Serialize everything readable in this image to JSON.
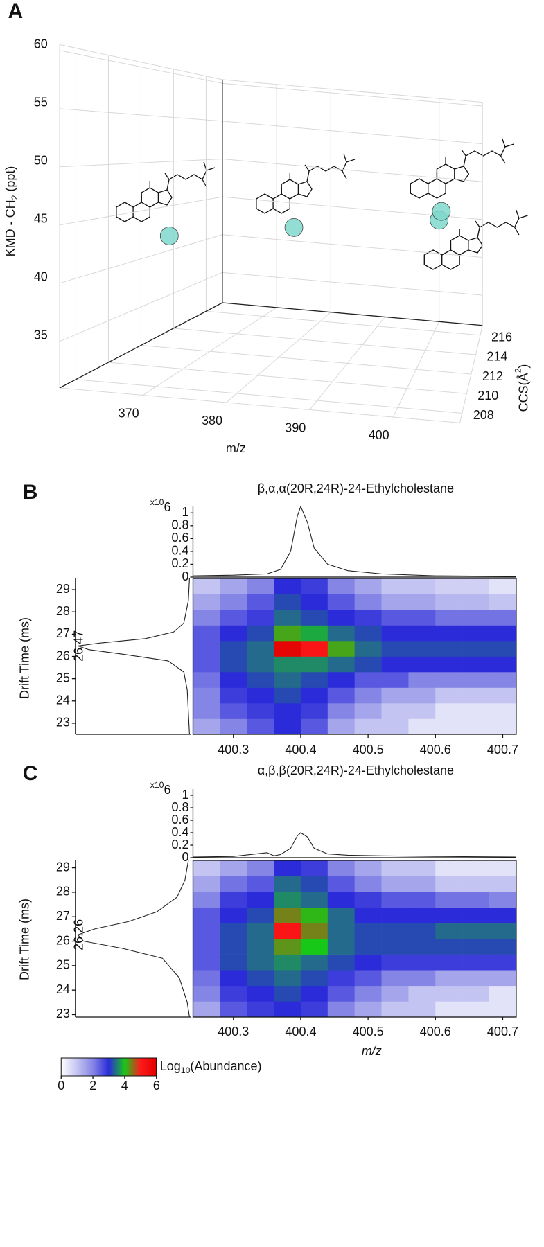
{
  "chart_data": [
    {
      "type": "scatter3d",
      "panel_label": "A",
      "x_label": "m/z",
      "y_label": [
        "CCS(Å",
        "2",
        ")"
      ],
      "z_label": [
        "KMD - CH",
        "2",
        " (ppt)"
      ],
      "xlim": [
        360,
        408
      ],
      "xticks": [
        370,
        380,
        390,
        400
      ],
      "ylim": [
        207,
        217
      ],
      "yticks": [
        208,
        210,
        212,
        214,
        216
      ],
      "zlim": [
        31,
        60.5
      ],
      "zticks": [
        35,
        40,
        45,
        50,
        55,
        60
      ],
      "x": [
        372.4,
        386.4,
        400.4,
        400.4
      ],
      "y": [
        207.5,
        208.65,
        216.5,
        217
      ],
      "z": [
        44.7,
        46,
        44.7,
        45.6
      ],
      "color": "#7fd8cc"
    },
    {
      "type": "heatmap",
      "panel_label": "B",
      "title": "β,α,α(20R,24R)-24-Ethylcholestane",
      "y_label": "Drift Time (ms)",
      "xlim": [
        400.24,
        400.72
      ],
      "xticks": [
        400.3,
        400.4,
        400.5,
        400.6,
        400.7
      ],
      "ylim": [
        22.5,
        29.5
      ],
      "yticks": [
        23,
        24,
        25,
        26,
        27,
        28,
        29
      ],
      "x_edges": [
        400.24,
        400.28,
        400.32,
        400.36,
        400.4,
        400.44,
        400.48,
        400.52,
        400.56,
        400.6,
        400.64,
        400.68,
        400.72
      ],
      "y_edges": [
        22.5,
        23.2,
        23.9,
        24.6,
        25.3,
        26,
        26.7,
        27.4,
        28.1,
        28.8,
        29.5
      ],
      "z": [
        [
          1.5,
          2,
          2.5,
          3,
          2.5,
          1.5,
          1,
          1,
          0.5,
          0.5,
          0.5,
          0.5
        ],
        [
          2,
          2.5,
          2.8,
          3,
          2.8,
          2,
          1.5,
          1,
          1,
          0.5,
          0.5,
          0.5
        ],
        [
          2,
          2.8,
          3,
          3.2,
          3,
          2.5,
          2,
          1.5,
          1.5,
          1,
          1,
          1
        ],
        [
          2.2,
          3,
          3.2,
          3.4,
          3.2,
          3,
          2.5,
          2.5,
          2,
          2,
          2,
          2
        ],
        [
          2.5,
          3.2,
          3.4,
          3.6,
          3.6,
          3.4,
          3.2,
          3,
          3,
          3,
          3,
          3
        ],
        [
          2.5,
          3.2,
          3.4,
          5.8,
          5.2,
          4.2,
          3.4,
          3.2,
          3.2,
          3.2,
          3.2,
          3.2
        ],
        [
          2.5,
          3,
          3.2,
          4.2,
          3.8,
          3.4,
          3.2,
          3,
          3,
          3,
          3,
          3
        ],
        [
          2,
          2.5,
          2.8,
          3.4,
          3.2,
          3,
          2.8,
          2.5,
          2.5,
          2.2,
          2.2,
          2.2
        ],
        [
          1.5,
          2,
          2.5,
          3.2,
          3,
          2.5,
          2,
          1.5,
          1.5,
          1.2,
          1.2,
          1
        ],
        [
          1,
          1.5,
          2,
          3,
          2.8,
          2,
          1.5,
          1,
          1,
          0.8,
          0.8,
          0.5
        ]
      ],
      "spectrum": {
        "x": [
          400.24,
          400.3,
          400.35,
          400.37,
          400.385,
          400.395,
          400.4,
          400.41,
          400.42,
          400.44,
          400.47,
          400.52,
          400.6,
          400.72
        ],
        "values": [
          0.02,
          0.03,
          0.05,
          0.12,
          0.4,
          0.95,
          1.1,
          0.85,
          0.45,
          0.2,
          0.1,
          0.05,
          0.02,
          0.01
        ],
        "ylim": [
          0,
          1.1
        ],
        "yticks": [
          0,
          0.2,
          0.4,
          0.6,
          0.8,
          1
        ],
        "scale_label": [
          "x10",
          "6"
        ]
      },
      "mobilogram": {
        "drift": [
          22.5,
          23.5,
          24.5,
          25.3,
          25.8,
          26.1,
          26.3,
          26.47,
          26.6,
          26.8,
          27.1,
          27.5,
          28.5,
          29.5
        ],
        "values": [
          0.01,
          0.02,
          0.03,
          0.06,
          0.2,
          0.6,
          0.9,
          1,
          0.8,
          0.4,
          0.15,
          0.06,
          0.02,
          0.01
        ],
        "xlim": [
          0,
          1
        ],
        "peak_label": 26.47
      }
    },
    {
      "type": "heatmap",
      "panel_label": "C",
      "title": "α,β,β(20R,24R)-24-Ethylcholestane",
      "y_label": "Drift Time (ms)",
      "x_label": "m/z",
      "xlim": [
        400.24,
        400.72
      ],
      "xticks": [
        400.3,
        400.4,
        400.5,
        400.6,
        400.7
      ],
      "ylim": [
        22.9,
        29.3
      ],
      "yticks": [
        23,
        24,
        25,
        26,
        27,
        28,
        29
      ],
      "x_edges": [
        400.24,
        400.28,
        400.32,
        400.36,
        400.4,
        400.44,
        400.48,
        400.52,
        400.56,
        400.6,
        400.64,
        400.68,
        400.72
      ],
      "y_edges": [
        22.9,
        23.54,
        24.18,
        24.82,
        25.46,
        26.1,
        26.74,
        27.38,
        28.02,
        28.66,
        29.3
      ],
      "z": [
        [
          1.5,
          2.5,
          2.8,
          3,
          2.8,
          2,
          1.5,
          1,
          1,
          0.5,
          0.5,
          0.5
        ],
        [
          2,
          2.8,
          3,
          3.2,
          3,
          2.5,
          2,
          1.5,
          1,
          1,
          1,
          0.5
        ],
        [
          2.2,
          3,
          3.2,
          3.4,
          3.2,
          2.8,
          2.5,
          2,
          2,
          1.5,
          1.5,
          1.5
        ],
        [
          2.5,
          3.2,
          3.4,
          3.6,
          3.4,
          3.2,
          3,
          2.8,
          2.8,
          2.8,
          2.8,
          2.8
        ],
        [
          2.5,
          3.2,
          3.4,
          4.3,
          4,
          3.4,
          3.2,
          3.2,
          3.2,
          3.2,
          3.2,
          3.2
        ],
        [
          2.5,
          3.2,
          3.4,
          5.2,
          4.4,
          3.4,
          3.2,
          3.2,
          3.2,
          3.4,
          3.4,
          3.4
        ],
        [
          2.5,
          3,
          3.2,
          4.4,
          4.1,
          3.4,
          3,
          3,
          3,
          3,
          3,
          3
        ],
        [
          2,
          2.8,
          3,
          3.6,
          3.4,
          3,
          2.8,
          2.5,
          2.5,
          2.2,
          2.2,
          2
        ],
        [
          1.5,
          2.2,
          2.5,
          3.4,
          3.2,
          2.5,
          2,
          1.5,
          1.5,
          1,
          1,
          1
        ],
        [
          1,
          1.5,
          2,
          3,
          2.8,
          2,
          1.5,
          1,
          1,
          0.5,
          0.5,
          0.5
        ]
      ],
      "spectrum": {
        "x": [
          400.24,
          400.3,
          400.35,
          400.36,
          400.37,
          400.385,
          400.395,
          400.4,
          400.41,
          400.42,
          400.44,
          400.47,
          400.52,
          400.6,
          400.72
        ],
        "values": [
          0.01,
          0.02,
          0.08,
          0.03,
          0.05,
          0.15,
          0.35,
          0.4,
          0.33,
          0.15,
          0.06,
          0.04,
          0.03,
          0.02,
          0.01
        ],
        "ylim": [
          0,
          1.1
        ],
        "yticks": [
          0,
          0.2,
          0.4,
          0.6,
          0.8,
          1
        ],
        "scale_label": [
          "x10",
          "6"
        ]
      },
      "mobilogram": {
        "drift": [
          22.9,
          23.5,
          24.5,
          25.3,
          25.7,
          26,
          26.26,
          26.5,
          26.8,
          27.2,
          27.8,
          28.5,
          29.3
        ],
        "values": [
          0.01,
          0.03,
          0.1,
          0.25,
          0.6,
          0.95,
          1,
          0.85,
          0.55,
          0.3,
          0.12,
          0.05,
          0.02
        ],
        "xlim": [
          0,
          1
        ],
        "peak_label": 26.26
      },
      "colorbar": {
        "lim": [
          0,
          6
        ],
        "ticks": [
          0,
          2,
          4,
          6
        ],
        "colors": [
          "#ffffff",
          "#c4c4f2",
          "#8585e6",
          "#2b2bd9",
          "#18c818",
          "#ff1a1a",
          "#e00000"
        ],
        "label": [
          "Log",
          "10",
          "(Abundance)"
        ]
      }
    }
  ]
}
